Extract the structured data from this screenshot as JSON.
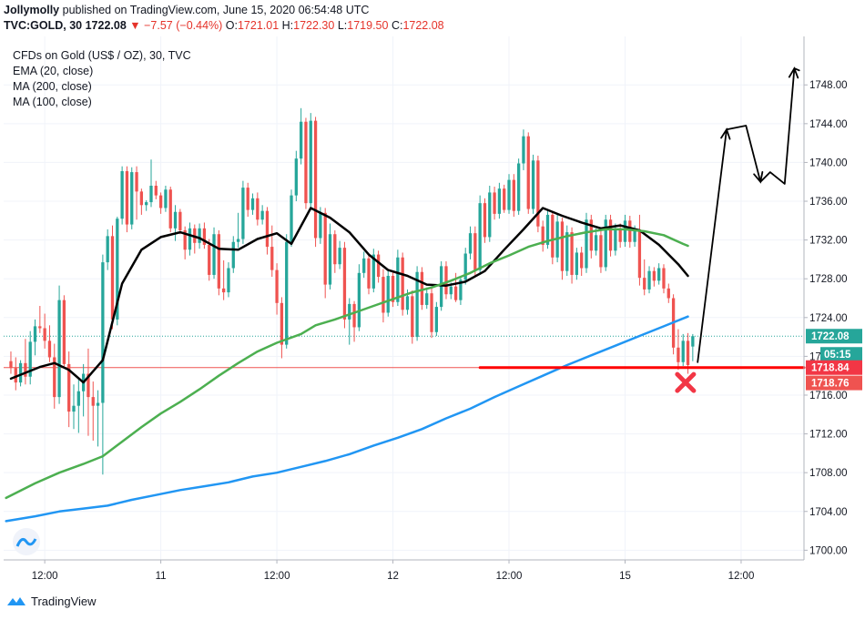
{
  "header": {
    "author": "Jollymolly",
    "published_text": " published on TradingView.com, June 15, 2020 06:54:48 UTC",
    "ticker": "TVC:GOLD, 30",
    "last": "1722.08",
    "change": "▼ −7.57 (−0.44%)",
    "o_label": "O:",
    "o_value": "1721.01",
    "h_label": "H:",
    "h_value": "1722.30",
    "l_label": "L:",
    "l_value": "1719.50",
    "c_label": "C:",
    "c_value": "1722.08"
  },
  "legend": {
    "title": "CFDs on Gold (US$ / OZ), 30, TVC",
    "ema20": "EMA (20, close)",
    "ma200": "MA (200, close)",
    "ma100": "MA (100, close)"
  },
  "price_tags": {
    "last": "1722.08",
    "countdown": "05:15",
    "level1": "1718.84",
    "level2": "1718.76"
  },
  "footer": {
    "brand": "TradingView"
  },
  "colors": {
    "up": "#26a69a",
    "down": "#ef5350",
    "ema20": "#000000",
    "ma100": "#4caf50",
    "ma200": "#2196f3",
    "support": "#ff0000",
    "tag_red": "#f23645"
  },
  "chart_data": {
    "type": "candlestick",
    "symbol": "TVC:GOLD",
    "interval": "30",
    "y_ticks": [
      1700,
      1704,
      1708,
      1712,
      1716,
      1720,
      1724,
      1728,
      1732,
      1736,
      1740,
      1744,
      1748
    ],
    "y_tick_labels": [
      "1700.00",
      "1704.00",
      "1708.00",
      "1712.00",
      "1716.00",
      "1720.00",
      "1724.00",
      "1728.00",
      "1732.00",
      "1736.00",
      "1740.00",
      "1744.00",
      "1748.00"
    ],
    "ylim": [
      1699,
      1753
    ],
    "x_labels": [
      {
        "label": "12:00",
        "bar": 7
      },
      {
        "label": "11",
        "bar": 31
      },
      {
        "label": "12:00",
        "bar": 55
      },
      {
        "label": "12",
        "bar": 79
      },
      {
        "label": "12:00",
        "bar": 103
      },
      {
        "label": "15",
        "bar": 127
      },
      {
        "label": "12:00",
        "bar": 151
      }
    ],
    "x_range_bars": [
      -1.5,
      164
    ],
    "last_price": 1722.08,
    "support_level": 1718.84,
    "horizontal_line": 1718.84,
    "candles_ohlc": [
      [
        1719.5,
        1720.5,
        1718.2,
        1718.8
      ],
      [
        1718.8,
        1719.9,
        1716.5,
        1717.3
      ],
      [
        1717.3,
        1719.6,
        1716.9,
        1719.3
      ],
      [
        1719.3,
        1721.8,
        1717.1,
        1717.9
      ],
      [
        1717.9,
        1722.6,
        1717.1,
        1721.5
      ],
      [
        1721.5,
        1723.8,
        1720.1,
        1723.1
      ],
      [
        1723.1,
        1725.2,
        1722.4,
        1722.9
      ],
      [
        1722.9,
        1724.4,
        1720.8,
        1721.6
      ],
      [
        1721.6,
        1723.2,
        1719.4,
        1719.9
      ],
      [
        1719.9,
        1721.3,
        1714.6,
        1715.8
      ],
      [
        1715.8,
        1727.3,
        1715.1,
        1725.8
      ],
      [
        1725.8,
        1726.3,
        1718.9,
        1719.2
      ],
      [
        1719.2,
        1720.5,
        1712.7,
        1714.3
      ],
      [
        1714.3,
        1717.1,
        1712.5,
        1714.9
      ],
      [
        1714.9,
        1717.8,
        1712.1,
        1716.4
      ],
      [
        1716.4,
        1719.2,
        1713.8,
        1718.2
      ],
      [
        1718.2,
        1720.8,
        1711.8,
        1715.8
      ],
      [
        1715.8,
        1717.4,
        1711.3,
        1714.9
      ],
      [
        1714.9,
        1716.5,
        1710.7,
        1715.2
      ],
      [
        1715.2,
        1730.5,
        1707.8,
        1729.7
      ],
      [
        1729.7,
        1733.1,
        1728.9,
        1732.4
      ],
      [
        1732.4,
        1733.5,
        1722.8,
        1723.8
      ],
      [
        1723.8,
        1734.4,
        1723.2,
        1734.2
      ],
      [
        1734.2,
        1739.6,
        1733.6,
        1739.1
      ],
      [
        1739.1,
        1739.6,
        1732.8,
        1733.6
      ],
      [
        1733.6,
        1739.5,
        1733.1,
        1739.0
      ],
      [
        1739.0,
        1739.6,
        1734.1,
        1737.0
      ],
      [
        1737.0,
        1737.3,
        1734.6,
        1735.6
      ],
      [
        1735.6,
        1736.1,
        1735.0,
        1735.9
      ],
      [
        1735.9,
        1740.3,
        1735.4,
        1737.6
      ],
      [
        1737.6,
        1738.1,
        1736.2,
        1736.6
      ],
      [
        1736.6,
        1736.9,
        1734.7,
        1735.3
      ],
      [
        1735.3,
        1737.6,
        1734.9,
        1737.2
      ],
      [
        1737.2,
        1737.5,
        1732.8,
        1733.2
      ],
      [
        1733.2,
        1735.6,
        1731.9,
        1734.9
      ],
      [
        1734.9,
        1735.2,
        1732.6,
        1733.0
      ],
      [
        1733.0,
        1733.4,
        1730.0,
        1731.0
      ],
      [
        1731.0,
        1733.8,
        1730.4,
        1733.2
      ],
      [
        1733.2,
        1733.6,
        1730.6,
        1731.7
      ],
      [
        1731.7,
        1733.7,
        1731.1,
        1733.2
      ],
      [
        1733.2,
        1733.8,
        1731.1,
        1731.5
      ],
      [
        1731.5,
        1732.1,
        1727.8,
        1728.4
      ],
      [
        1728.4,
        1733.3,
        1728.0,
        1732.6
      ],
      [
        1732.6,
        1733.0,
        1726.3,
        1727.0
      ],
      [
        1727.0,
        1729.9,
        1725.8,
        1726.6
      ],
      [
        1726.6,
        1729.7,
        1726.1,
        1729.1
      ],
      [
        1729.1,
        1732.4,
        1728.6,
        1731.8
      ],
      [
        1731.8,
        1734.8,
        1731.2,
        1732.1
      ],
      [
        1732.1,
        1738.1,
        1731.6,
        1737.4
      ],
      [
        1737.4,
        1737.9,
        1734.4,
        1735.1
      ],
      [
        1735.1,
        1736.8,
        1734.6,
        1736.3
      ],
      [
        1736.3,
        1736.9,
        1733.5,
        1734.1
      ],
      [
        1734.1,
        1735.6,
        1733.6,
        1735.0
      ],
      [
        1735.0,
        1735.4,
        1730.5,
        1731.3
      ],
      [
        1731.3,
        1733.5,
        1728.2,
        1728.9
      ],
      [
        1728.9,
        1729.6,
        1724.3,
        1725.5
      ],
      [
        1725.5,
        1726.1,
        1719.8,
        1721.2
      ],
      [
        1721.2,
        1732.6,
        1720.8,
        1731.8
      ],
      [
        1731.8,
        1737.2,
        1731.3,
        1736.6
      ],
      [
        1736.6,
        1741.2,
        1736.0,
        1740.4
      ],
      [
        1740.4,
        1745.6,
        1739.8,
        1744.2
      ],
      [
        1744.2,
        1744.6,
        1735.2,
        1735.8
      ],
      [
        1735.8,
        1745.1,
        1735.3,
        1744.3
      ],
      [
        1744.3,
        1744.7,
        1731.3,
        1732.2
      ],
      [
        1732.2,
        1735.4,
        1731.6,
        1734.8
      ],
      [
        1734.8,
        1735.3,
        1726.0,
        1727.4
      ],
      [
        1727.4,
        1733.7,
        1726.9,
        1732.6
      ],
      [
        1732.6,
        1733.0,
        1728.6,
        1729.5
      ],
      [
        1729.5,
        1731.9,
        1729.0,
        1731.2
      ],
      [
        1731.2,
        1731.8,
        1722.9,
        1723.8
      ],
      [
        1723.8,
        1726.0,
        1721.2,
        1725.4
      ],
      [
        1725.4,
        1725.7,
        1721.5,
        1723.0
      ],
      [
        1723.0,
        1729.5,
        1722.6,
        1728.6
      ],
      [
        1728.6,
        1730.8,
        1728.1,
        1730.1
      ],
      [
        1730.1,
        1730.6,
        1726.4,
        1727.0
      ],
      [
        1727.0,
        1731.1,
        1726.6,
        1730.5
      ],
      [
        1730.5,
        1730.9,
        1727.6,
        1728.2
      ],
      [
        1728.2,
        1729.0,
        1723.5,
        1724.5
      ],
      [
        1724.5,
        1728.9,
        1724.1,
        1728.3
      ],
      [
        1728.3,
        1728.8,
        1725.1,
        1725.6
      ],
      [
        1725.6,
        1731.0,
        1725.2,
        1730.2
      ],
      [
        1730.2,
        1730.7,
        1724.2,
        1724.8
      ],
      [
        1724.8,
        1726.9,
        1724.3,
        1726.2
      ],
      [
        1726.2,
        1726.8,
        1721.3,
        1722.0
      ],
      [
        1722.0,
        1729.3,
        1721.6,
        1728.7
      ],
      [
        1728.7,
        1729.2,
        1724.8,
        1725.3
      ],
      [
        1725.3,
        1727.1,
        1724.9,
        1726.5
      ],
      [
        1726.5,
        1727.0,
        1721.9,
        1722.5
      ],
      [
        1722.5,
        1725.6,
        1722.1,
        1725.1
      ],
      [
        1725.1,
        1729.8,
        1724.7,
        1729.3
      ],
      [
        1729.3,
        1729.8,
        1725.9,
        1726.4
      ],
      [
        1726.4,
        1727.6,
        1725.9,
        1727.2
      ],
      [
        1727.2,
        1728.6,
        1725.6,
        1725.8
      ],
      [
        1725.8,
        1728.3,
        1725.3,
        1727.9
      ],
      [
        1727.9,
        1731.2,
        1727.4,
        1730.6
      ],
      [
        1730.6,
        1733.4,
        1730.0,
        1732.7
      ],
      [
        1732.7,
        1733.4,
        1728.2,
        1728.9
      ],
      [
        1728.9,
        1736.6,
        1728.4,
        1735.8
      ],
      [
        1735.8,
        1736.3,
        1731.7,
        1732.3
      ],
      [
        1732.3,
        1737.6,
        1731.8,
        1736.9
      ],
      [
        1736.9,
        1737.5,
        1734.1,
        1734.7
      ],
      [
        1734.7,
        1737.9,
        1734.2,
        1737.3
      ],
      [
        1737.3,
        1737.7,
        1734.8,
        1735.1
      ],
      [
        1735.1,
        1738.8,
        1734.7,
        1738.2
      ],
      [
        1738.2,
        1738.8,
        1734.4,
        1735.0
      ],
      [
        1735.0,
        1740.4,
        1734.6,
        1739.9
      ],
      [
        1739.9,
        1743.4,
        1739.2,
        1742.7
      ],
      [
        1742.7,
        1743.1,
        1734.7,
        1735.2
      ],
      [
        1735.2,
        1740.8,
        1734.7,
        1740.2
      ],
      [
        1740.2,
        1740.7,
        1732.8,
        1733.4
      ],
      [
        1733.4,
        1734.0,
        1730.8,
        1731.5
      ],
      [
        1731.5,
        1735.1,
        1731.1,
        1734.6
      ],
      [
        1734.6,
        1735.0,
        1729.5,
        1730.2
      ],
      [
        1730.2,
        1734.7,
        1729.7,
        1733.9
      ],
      [
        1733.9,
        1734.3,
        1727.9,
        1728.8
      ],
      [
        1728.8,
        1733.5,
        1728.3,
        1732.8
      ],
      [
        1732.8,
        1733.3,
        1727.5,
        1728.4
      ],
      [
        1728.4,
        1731.2,
        1727.9,
        1730.7
      ],
      [
        1730.7,
        1731.3,
        1728.3,
        1729.1
      ],
      [
        1729.1,
        1734.8,
        1728.6,
        1734.1
      ],
      [
        1734.1,
        1734.6,
        1730.1,
        1730.9
      ],
      [
        1730.9,
        1733.2,
        1730.4,
        1732.5
      ],
      [
        1732.5,
        1733.1,
        1728.6,
        1729.2
      ],
      [
        1729.2,
        1734.6,
        1728.8,
        1734.1
      ],
      [
        1734.1,
        1734.6,
        1730.3,
        1730.9
      ],
      [
        1730.9,
        1733.7,
        1730.4,
        1733.2
      ],
      [
        1733.2,
        1733.7,
        1731.2,
        1731.8
      ],
      [
        1731.8,
        1734.6,
        1731.3,
        1734.0
      ],
      [
        1734.0,
        1734.5,
        1731.2,
        1731.8
      ],
      [
        1731.8,
        1733.5,
        1731.3,
        1733.1
      ],
      [
        1733.1,
        1734.6,
        1727.3,
        1728.1
      ],
      [
        1728.1,
        1730.0,
        1726.3,
        1726.9
      ],
      [
        1726.9,
        1729.3,
        1726.5,
        1728.8
      ],
      [
        1728.8,
        1729.2,
        1727.2,
        1727.8
      ],
      [
        1727.8,
        1729.6,
        1727.4,
        1729.1
      ],
      [
        1729.1,
        1729.5,
        1726.5,
        1727.0
      ],
      [
        1727.0,
        1727.5,
        1725.5,
        1726.0
      ],
      [
        1726.0,
        1726.4,
        1720.2,
        1720.9
      ],
      [
        1720.9,
        1722.8,
        1718.6,
        1719.4
      ],
      [
        1719.4,
        1722.3,
        1719.0,
        1721.6
      ],
      [
        1721.6,
        1722.4,
        1718.2,
        1719.1
      ],
      [
        1721.01,
        1722.3,
        1719.5,
        1722.08
      ]
    ],
    "series": [
      {
        "name": "EMA (20, close)",
        "color": "#000000",
        "x": [
          0,
          6,
          9,
          12,
          15,
          19,
          23,
          27,
          31,
          35,
          39,
          43,
          47,
          51,
          55,
          58,
          62,
          66,
          70,
          74,
          78,
          82,
          86,
          90,
          94,
          98,
          102,
          106,
          110,
          114,
          118,
          122,
          126,
          130,
          134,
          138,
          140
        ],
        "values": [
          1717.7,
          1718.9,
          1719.3,
          1718.6,
          1717.3,
          1719.6,
          1727.5,
          1731.0,
          1732.3,
          1732.8,
          1732.2,
          1731.1,
          1731.0,
          1732.1,
          1732.7,
          1731.6,
          1735.3,
          1734.3,
          1732.8,
          1730.5,
          1728.9,
          1728.3,
          1727.4,
          1727.3,
          1727.7,
          1728.8,
          1731.0,
          1733.1,
          1735.3,
          1734.5,
          1733.8,
          1733.2,
          1733.5,
          1733.0,
          1731.5,
          1729.5,
          1728.3
        ]
      },
      {
        "name": "MA (100, close)",
        "color": "#4caf50",
        "x": [
          -1,
          5,
          10,
          15,
          19,
          23,
          27,
          31,
          35,
          39,
          43,
          47,
          51,
          55,
          60,
          63,
          67,
          71,
          75,
          79,
          83,
          87,
          91,
          95,
          99,
          103,
          107,
          111,
          115,
          119,
          123,
          127,
          131,
          135,
          139,
          140
        ],
        "values": [
          1705.4,
          1706.9,
          1708.0,
          1708.9,
          1709.7,
          1711.2,
          1712.7,
          1714.1,
          1715.3,
          1716.6,
          1718.0,
          1719.3,
          1720.5,
          1721.4,
          1722.3,
          1723.2,
          1723.8,
          1724.5,
          1725.2,
          1725.9,
          1726.6,
          1727.1,
          1727.8,
          1728.6,
          1729.6,
          1730.4,
          1731.3,
          1731.9,
          1732.4,
          1732.8,
          1733.1,
          1733.1,
          1732.9,
          1732.5,
          1731.6,
          1731.4
        ]
      },
      {
        "name": "MA (200, close)",
        "color": "#2196f3",
        "x": [
          -1,
          5,
          10,
          15,
          20,
          25,
          30,
          35,
          40,
          45,
          50,
          55,
          60,
          65,
          70,
          75,
          80,
          85,
          90,
          95,
          100,
          105,
          110,
          115,
          120,
          125,
          130,
          135,
          140
        ],
        "values": [
          1703.0,
          1703.5,
          1704.0,
          1704.3,
          1704.6,
          1705.2,
          1705.7,
          1706.2,
          1706.6,
          1707.0,
          1707.6,
          1708.0,
          1708.6,
          1709.2,
          1709.9,
          1710.8,
          1711.6,
          1712.5,
          1713.6,
          1714.6,
          1715.8,
          1716.9,
          1718.0,
          1719.1,
          1720.1,
          1721.1,
          1722.1,
          1723.1,
          1724.1
        ]
      },
      {
        "name": "",
        "color": "#ff0000",
        "x": [
          97,
          164
        ],
        "values": [
          1718.84,
          1718.84
        ]
      },
      {
        "name": "",
        "color": "#000000",
        "x": [
          142,
          148,
          152,
          155,
          157,
          160,
          162,
          163
        ],
        "values": [
          1719.4,
          1743.4,
          1743.8,
          1738.0,
          1739.0,
          1737.8,
          1749.7,
          1749.5
        ]
      }
    ]
  }
}
